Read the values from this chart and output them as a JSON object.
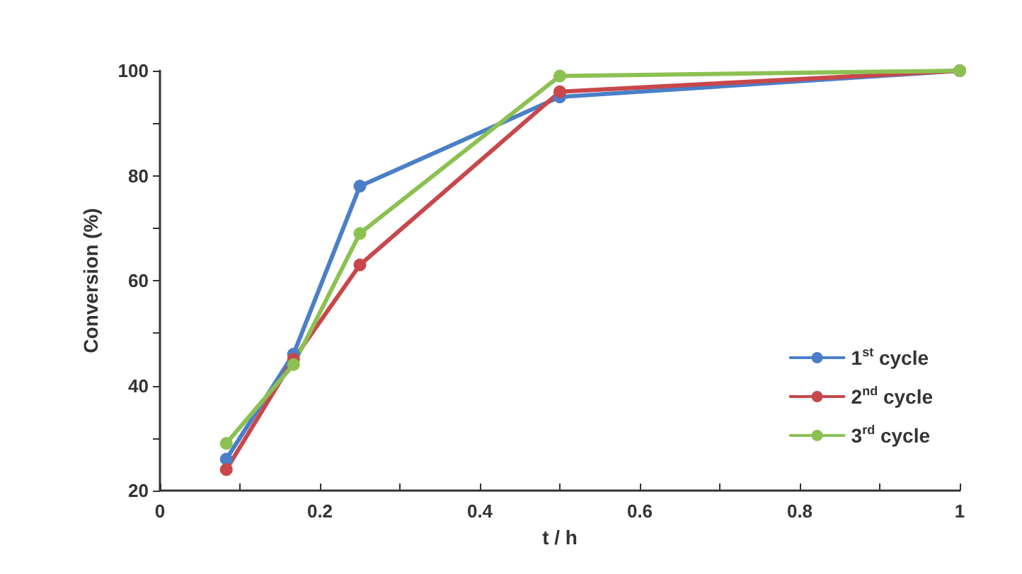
{
  "chart_data": {
    "type": "line",
    "xlabel": "t / h",
    "ylabel": "Conversion (%)",
    "x": [
      0.083,
      0.167,
      0.25,
      0.5,
      1
    ],
    "series": [
      {
        "name": "1$^{st}$ cycle",
        "color": "#4a7fc8",
        "values": [
          26,
          46,
          78,
          95,
          100
        ]
      },
      {
        "name": "2$^{nd}$ cycle",
        "color": "#c8474a",
        "values": [
          24,
          45,
          63,
          96,
          100
        ]
      },
      {
        "name": "3$^{rd}$ cycle",
        "color": "#8cc152",
        "values": [
          29,
          44,
          69,
          99,
          100
        ]
      }
    ],
    "xlim": [
      0,
      1
    ],
    "xticks": [
      0,
      {
        "value": 0.1,
        "label": null
      },
      0.2,
      {
        "value": 0.3,
        "label": null
      },
      0.4,
      {
        "value": 0.5,
        "label": null
      },
      0.6,
      {
        "value": 0.7,
        "label": null
      },
      0.8,
      {
        "value": 0.9,
        "label": null
      },
      1
    ],
    "ylim": [
      20,
      100
    ],
    "yticks": [
      20,
      {
        "value": 30,
        "label": null
      },
      40,
      {
        "value": 50,
        "label": null
      },
      60,
      {
        "value": 70,
        "label": null
      },
      80,
      {
        "value": 90,
        "label": null
      },
      100
    ],
    "grid": false,
    "legend": "bottom right",
    "marker": "circle",
    "line_style": "solid"
  }
}
